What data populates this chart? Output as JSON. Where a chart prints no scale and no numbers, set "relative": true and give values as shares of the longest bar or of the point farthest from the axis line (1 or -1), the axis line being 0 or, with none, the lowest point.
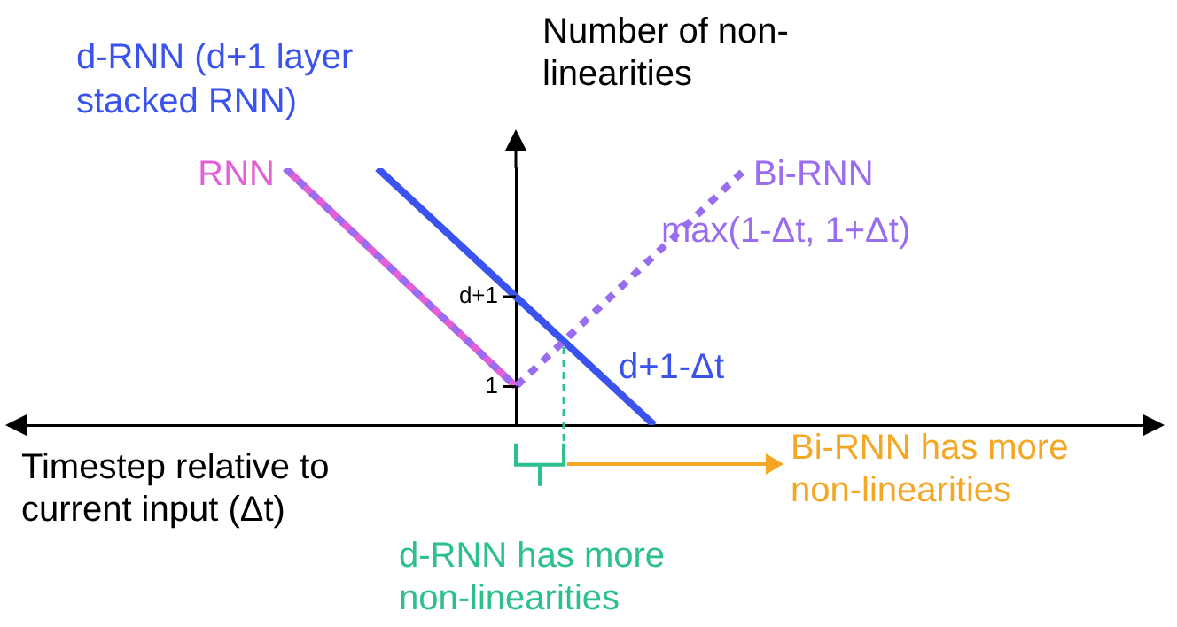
{
  "chart_data": {
    "type": "line",
    "ylabel": "Number of non-linearities",
    "xlabel": "Timestep relative to current input (Δt)",
    "categories": [
      null,
      null,
      null,
      null,
      null,
      null,
      null,
      null,
      null,
      null,
      null,
      null,
      null,
      null,
      null,
      null,
      null,
      null,
      null,
      null,
      null,
      null,
      null,
      null,
      null,
      null
    ],
    "relative": true,
    "marker": "none",
    "series": [
      {
        "name": "RNN",
        "color": "#e35fd6",
        "values": [
          null,
          null,
          null,
          null,
          null,
          null,
          1,
          null,
          null,
          null,
          null,
          0.15,
          null,
          null,
          null,
          null,
          null,
          null,
          null,
          null,
          null,
          null,
          null,
          null,
          null,
          null
        ],
        "line_style": "solid"
      },
      {
        "name": "d-RNN (d+1 layer stacked RNN)",
        "color": "#3a52ee",
        "values": [
          null,
          null,
          null,
          null,
          null,
          null,
          null,
          null,
          1,
          null,
          null,
          null,
          null,
          null,
          0,
          null,
          null,
          null,
          null,
          null,
          null,
          null,
          null,
          null,
          null,
          null
        ],
        "line_style": "solid"
      },
      {
        "name": "Bi-RNN",
        "color": "#9a6cf0",
        "values": [
          null,
          null,
          null,
          null,
          null,
          null,
          1,
          null,
          null,
          null,
          null,
          0.15,
          null,
          null,
          null,
          null,
          1,
          null,
          null,
          null,
          null,
          null,
          null,
          null,
          null,
          null
        ],
        "line_style": "dotted"
      }
    ],
    "annotations": [
      "1",
      "d+1",
      "max(1-Δt, 1+Δt)",
      "d+1-Δt",
      "d-RNN has more non-linearities",
      "Bi-RNN has more non-linearities"
    ]
  }
}
